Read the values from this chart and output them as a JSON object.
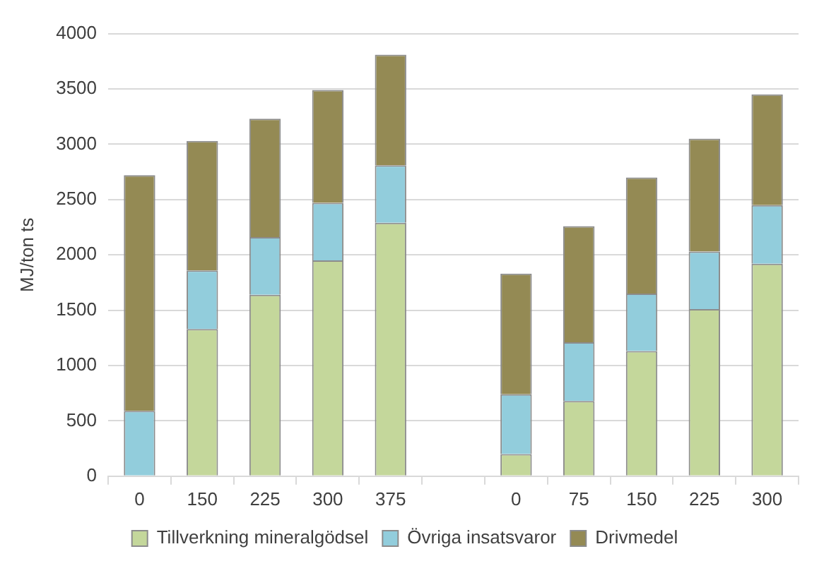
{
  "chart_data": {
    "type": "bar",
    "stacked": true,
    "ylabel": "MJ/ton ts",
    "categories": [
      "0",
      "150",
      "225",
      "300",
      "375",
      null,
      "0",
      "75",
      "150",
      "225",
      "300"
    ],
    "series": [
      {
        "name": "Tillverkning mineralgödsel",
        "color": "#c4d79b",
        "values": [
          0,
          1330,
          1640,
          1950,
          2290,
          null,
          200,
          680,
          1130,
          1510,
          1920
        ]
      },
      {
        "name": "Övriga insatsvaror",
        "color": "#92cddc",
        "values": [
          590,
          530,
          520,
          520,
          520,
          null,
          540,
          530,
          520,
          520,
          530
        ]
      },
      {
        "name": "Drivmedel",
        "color": "#948a54",
        "values": [
          2130,
          1170,
          1070,
          1020,
          1000,
          null,
          1090,
          1050,
          1050,
          1020,
          1000
        ]
      }
    ],
    "ylim": [
      0,
      4000
    ],
    "yticks": [
      0,
      500,
      1000,
      1500,
      2000,
      2500,
      3000,
      3500,
      4000
    ],
    "grid": "y",
    "legend": "bottom"
  }
}
